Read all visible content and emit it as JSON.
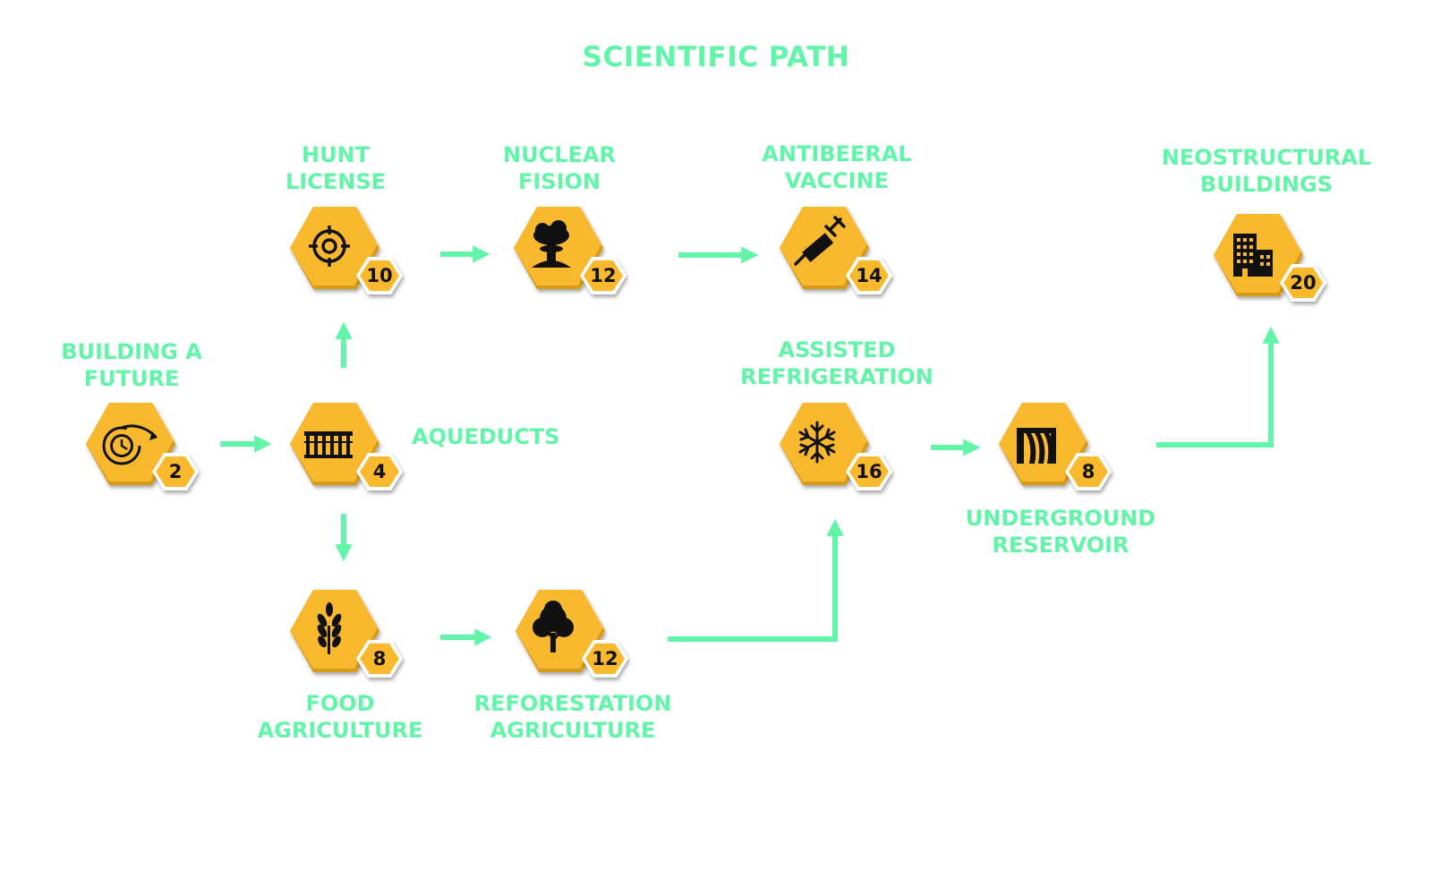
{
  "title": "SCIENTIFIC PATH",
  "colors": {
    "accent": "#62f5a9",
    "hex": "#f9b92e",
    "hex_shade": "#d99a14",
    "icon": "#111111",
    "badge_rim": "#ffffff"
  },
  "nodes": {
    "building_a_future": {
      "label": "BUILDING A\nFUTURE",
      "cost": "2",
      "icon": "clock-arrow-icon"
    },
    "aqueducts": {
      "label": "AQUEDUCTS",
      "cost": "4",
      "icon": "aqueduct-icon"
    },
    "hunt_license": {
      "label": "HUNT\nLICENSE",
      "cost": "10",
      "icon": "crosshair-icon"
    },
    "nuclear_fission": {
      "label": "NUCLEAR\nFISION",
      "cost": "12",
      "icon": "mushroom-cloud-icon"
    },
    "antibeeral_vaccine": {
      "label": "ANTIBEERAL\nVACCINE",
      "cost": "14",
      "icon": "syringe-icon"
    },
    "food_agriculture": {
      "label": "FOOD\nAGRICULTURE",
      "cost": "8",
      "icon": "wheat-icon"
    },
    "reforestation_agriculture": {
      "label": "REFORESTATION\nAGRICULTURE",
      "cost": "12",
      "icon": "tree-icon"
    },
    "assisted_refrigeration": {
      "label": "ASSISTED\nREFRIGERATION",
      "cost": "16",
      "icon": "snowflake-icon"
    },
    "underground_reservoir": {
      "label": "UNDERGROUND\nRESERVOIR",
      "cost": "8",
      "icon": "dam-icon"
    },
    "neostructural_buildings": {
      "label": "NEOSTRUCTURAL\nBUILDINGS",
      "cost": "20",
      "icon": "buildings-icon"
    }
  },
  "edges": [
    [
      "building_a_future",
      "aqueducts"
    ],
    [
      "aqueducts",
      "hunt_license"
    ],
    [
      "aqueducts",
      "food_agriculture"
    ],
    [
      "hunt_license",
      "nuclear_fission"
    ],
    [
      "nuclear_fission",
      "antibeeral_vaccine"
    ],
    [
      "food_agriculture",
      "reforestation_agriculture"
    ],
    [
      "reforestation_agriculture",
      "assisted_refrigeration"
    ],
    [
      "assisted_refrigeration",
      "underground_reservoir"
    ],
    [
      "underground_reservoir",
      "neostructural_buildings"
    ]
  ]
}
